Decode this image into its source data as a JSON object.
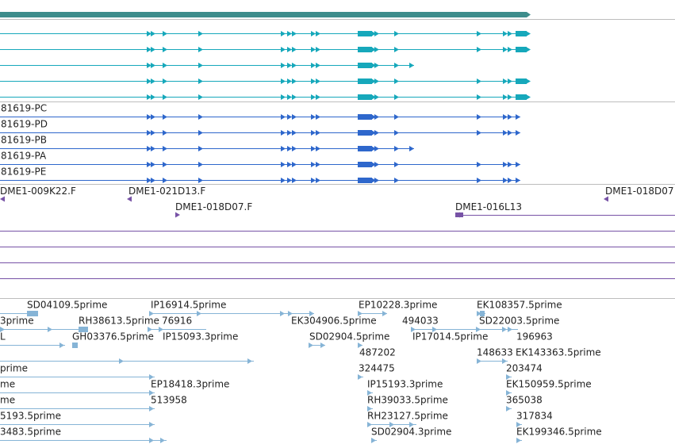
{
  "colors": {
    "gene_bar": "#3e8d8c",
    "transcript": "#16a8bb",
    "cds": "#2e67cc",
    "bac": "#7752a6",
    "est": "#86b4d6",
    "divider": "#bdbdbd"
  },
  "cds_labels": [
    "81619-PC",
    "81619-PD",
    "81619-PB",
    "81619-PA",
    "81619-PE"
  ],
  "bac_labels": [
    "DME1-009K22.F",
    "DME1-021D13.F",
    "DME1-018D07",
    "DME1-018D07.F",
    "DME1-016L13"
  ],
  "est_labels": [
    "SD04109.5prime",
    "IP16914.5prime",
    "EP10228.3prime",
    "EK108357.5prime",
    "3prime",
    "RH38613.5prime",
    "76916",
    "EK304906.5prime",
    "494033",
    "SD22003.5prime",
    "L",
    "GH03376.5prime",
    "IP15093.3prime",
    "SD02904.5prime",
    "IP17014.5prime",
    "196963",
    "487202",
    "148633",
    "EK143363.5prime",
    "prime",
    "324475",
    "203474",
    "me",
    "EP18418.3prime",
    "IP15193.3prime",
    "EK150959.5prime",
    "me",
    "513958",
    "RH39033.5prime",
    "365038",
    "5193.5prime",
    "RH23127.5prime",
    "317834",
    "3483.5prime",
    "SD02904.3prime",
    "EK199346.5prime"
  ]
}
